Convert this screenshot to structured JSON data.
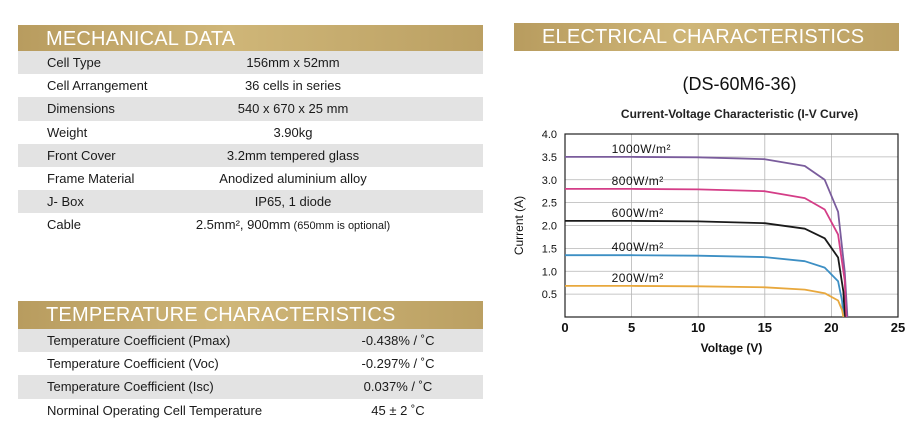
{
  "mechanical": {
    "title": "MECHANICAL DATA",
    "rows": [
      {
        "label": "Cell Type",
        "value": "156mm x 52mm"
      },
      {
        "label": "Cell Arrangement",
        "value": "36 cells in series"
      },
      {
        "label": "Dimensions",
        "value": "540 x 670 x 25 mm"
      },
      {
        "label": "Weight",
        "value": "3.90kg"
      },
      {
        "label": "Front Cover",
        "value": "3.2mm tempered glass"
      },
      {
        "label": "Frame Material",
        "value": "Anodized aluminium alloy"
      },
      {
        "label": "J- Box",
        "value": "IP65, 1 diode"
      },
      {
        "label": "Cable",
        "value": "2.5mm², 900mm",
        "note": "(650mm is optional)"
      }
    ]
  },
  "temperature": {
    "title": "TEMPERATURE CHARACTERISTICS",
    "rows": [
      {
        "label": "Temperature Coefficient (Pmax)",
        "value": "-0.438% / ˚C"
      },
      {
        "label": "Temperature Coefficient (Voc)",
        "value": "-0.297% / ˚C"
      },
      {
        "label": "Temperature Coefficient (Isc)",
        "value": "0.037% / ˚C"
      },
      {
        "label": "Norminal Operating Cell Temperature",
        "value": "45 ± 2 ˚C"
      }
    ]
  },
  "electrical": {
    "title": "ELECTRICAL CHARACTERISTICS"
  },
  "colors": {
    "header_gold": "#c4aa6c",
    "stripe": "#e3e3e3"
  },
  "chart_data": {
    "type": "line",
    "title": "(DS-60M6-36)",
    "subtitle": "Current-Voltage Characteristic (I-V Curve)",
    "xlabel": "Voltage (V)",
    "ylabel": "Current (A)",
    "xlim": [
      0,
      25
    ],
    "ylim": [
      0,
      4.0
    ],
    "xticks": [
      "0",
      "5",
      "10",
      "15",
      "20",
      "25"
    ],
    "yticks": [
      "0.5",
      "1.0",
      "1.5",
      "2.0",
      "2.5",
      "3.0",
      "3.5",
      "4.0"
    ],
    "grid": true,
    "series": [
      {
        "name": "1000W/m²",
        "color": "#7a5c9c",
        "x": [
          0,
          5,
          10,
          15,
          18,
          19.5,
          20.5,
          21.0,
          21.2
        ],
        "y": [
          3.5,
          3.5,
          3.49,
          3.45,
          3.3,
          3.0,
          2.3,
          1.0,
          0
        ]
      },
      {
        "name": "800W/m²",
        "color": "#d43d87",
        "x": [
          0,
          5,
          10,
          15,
          18,
          19.5,
          20.5,
          21.0,
          21.1
        ],
        "y": [
          2.8,
          2.8,
          2.79,
          2.75,
          2.6,
          2.35,
          1.8,
          0.8,
          0
        ]
      },
      {
        "name": "600W/m²",
        "color": "#1a1a1a",
        "x": [
          0,
          5,
          10,
          15,
          18,
          19.5,
          20.5,
          20.9,
          21.0
        ],
        "y": [
          2.1,
          2.1,
          2.09,
          2.05,
          1.93,
          1.72,
          1.3,
          0.55,
          0
        ]
      },
      {
        "name": "400W/m²",
        "color": "#3d8fc4",
        "x": [
          0,
          5,
          10,
          15,
          18,
          19.5,
          20.5,
          20.8,
          20.9
        ],
        "y": [
          1.35,
          1.35,
          1.34,
          1.31,
          1.22,
          1.08,
          0.78,
          0.35,
          0
        ]
      },
      {
        "name": "200W/m²",
        "color": "#e8a83d",
        "x": [
          0,
          5,
          10,
          15,
          18,
          19.5,
          20.5,
          20.8,
          20.9
        ],
        "y": [
          0.68,
          0.68,
          0.67,
          0.65,
          0.6,
          0.52,
          0.36,
          0.15,
          0
        ]
      }
    ]
  }
}
